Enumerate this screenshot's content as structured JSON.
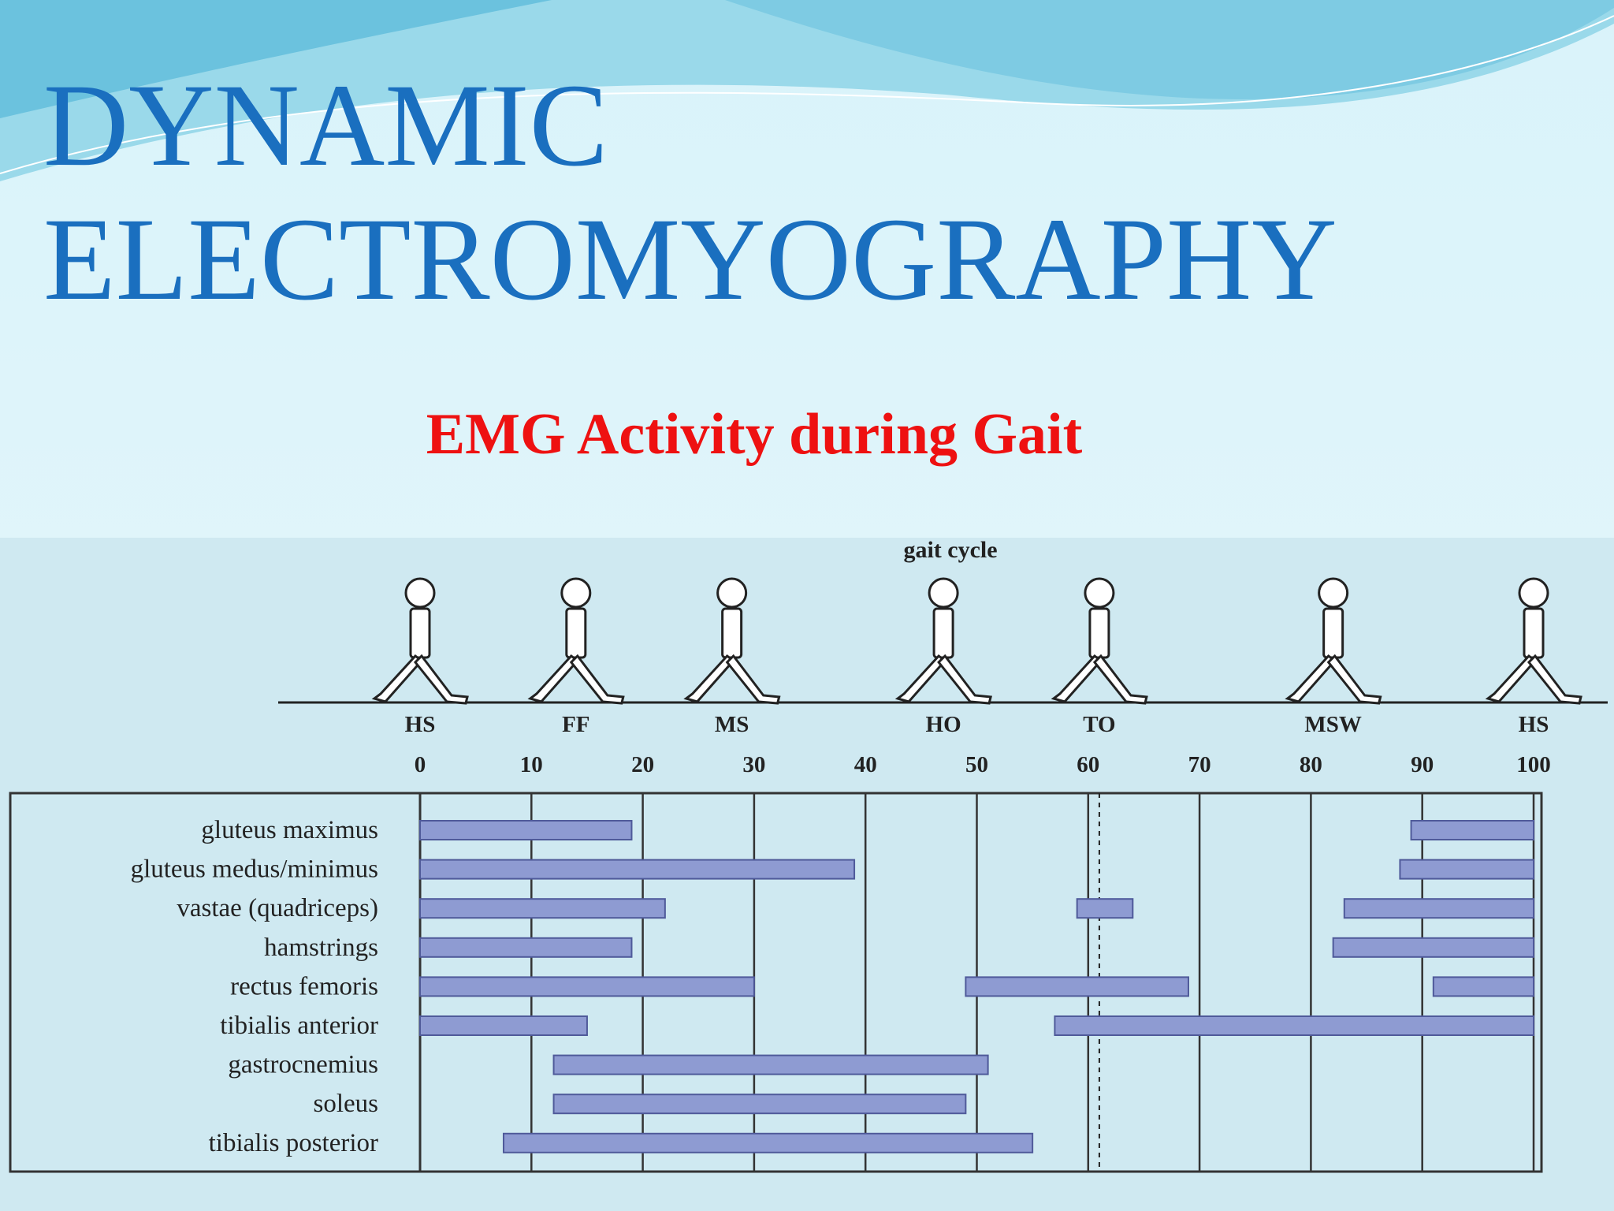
{
  "slide_title": [
    "DYNAMIC",
    "ELECTROMYOGRAPHY"
  ],
  "chart_data": {
    "type": "range_bar",
    "title": "EMG Activity during Gait",
    "xlabel": "gait cycle",
    "xlim": [
      0,
      100
    ],
    "xticks": [
      0,
      10,
      20,
      30,
      40,
      50,
      60,
      70,
      80,
      90,
      100
    ],
    "grid": true,
    "color": "#8e9bd2",
    "phases": [
      {
        "label": "HS",
        "x": 0
      },
      {
        "label": "FF",
        "x": 14
      },
      {
        "label": "MS",
        "x": 28
      },
      {
        "label": "HO",
        "x": 47
      },
      {
        "label": "TO",
        "x": 61
      },
      {
        "label": "MSW",
        "x": 82
      },
      {
        "label": "HS",
        "x": 100
      }
    ],
    "reference_line": 61,
    "categories": [
      "gluteus maximus",
      "gluteus medus/minimus",
      "vastae (quadriceps)",
      "hamstrings",
      "rectus femoris",
      "tibialis anterior",
      "gastrocnemius",
      "soleus",
      "tibialis posterior"
    ],
    "ranges": [
      [
        [
          0,
          19
        ],
        [
          89,
          100
        ]
      ],
      [
        [
          0,
          39
        ],
        [
          88,
          100
        ]
      ],
      [
        [
          0,
          22
        ],
        [
          59,
          64
        ],
        [
          83,
          100
        ]
      ],
      [
        [
          0,
          19
        ],
        [
          82,
          100
        ]
      ],
      [
        [
          0,
          30
        ],
        [
          49,
          69
        ],
        [
          91,
          100
        ]
      ],
      [
        [
          0,
          15
        ],
        [
          57,
          100
        ]
      ],
      [
        [
          12,
          51
        ]
      ],
      [
        [
          12,
          49
        ]
      ],
      [
        [
          7.5,
          55
        ]
      ]
    ]
  }
}
